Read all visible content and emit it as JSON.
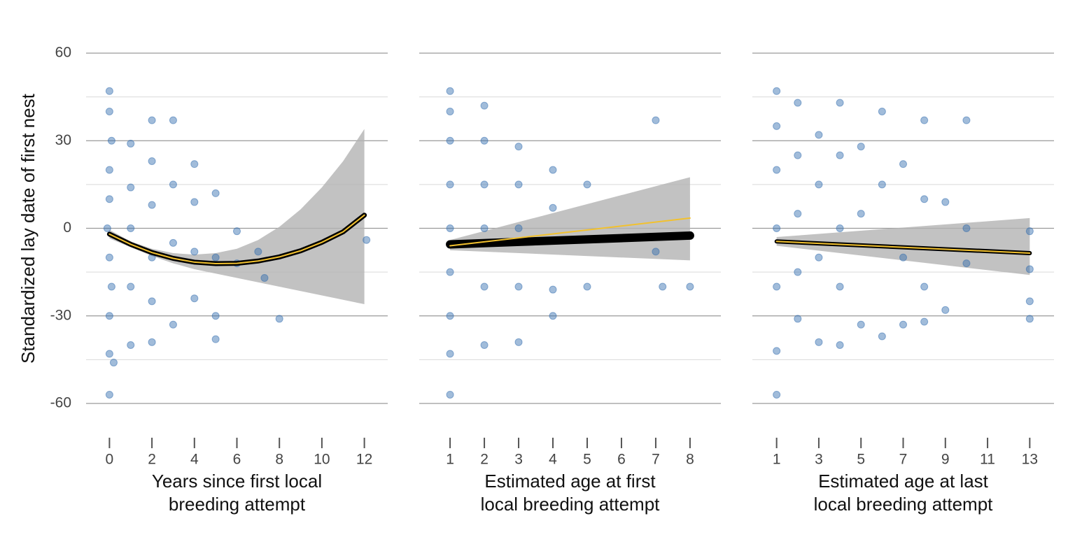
{
  "chart_data": [
    {
      "type": "scatter",
      "ylabel": "Standardized lay date of first nest",
      "xlabel": [
        "Years since first local",
        "breeding attempt"
      ],
      "xlim": [
        -1.1,
        13.1
      ],
      "xticks": [
        0,
        2,
        4,
        6,
        8,
        10,
        12
      ],
      "ylim": [
        -60,
        60
      ],
      "yticks": [
        60,
        30,
        0,
        -30,
        -60
      ],
      "minor_grid": [
        45,
        15,
        -15,
        -45
      ],
      "series": [
        {
          "kind": "band",
          "color": "#b3b3b3",
          "x": [
            0,
            1,
            2,
            3,
            4,
            5,
            6,
            7,
            8,
            9,
            10,
            11,
            12
          ],
          "lower": [
            -3.5,
            -6.5,
            -9.5,
            -12,
            -14,
            -15.5,
            -17,
            -18.5,
            -20,
            -21.5,
            -23,
            -24.5,
            -26
          ],
          "upper": [
            -0.5,
            -4.5,
            -7,
            -8.5,
            -9,
            -8.5,
            -7,
            -4,
            0.5,
            6.5,
            14,
            23,
            34
          ]
        },
        {
          "kind": "scatter",
          "color": "#2e6aad",
          "x": [
            0,
            0,
            0.1,
            0,
            0,
            -0.1,
            0,
            0.1,
            0,
            0,
            0,
            0.2,
            1,
            1,
            1,
            1,
            1,
            2,
            2,
            2,
            2,
            2,
            2,
            3,
            3,
            3,
            3,
            4,
            4,
            4,
            4,
            5,
            5,
            5,
            5,
            6,
            6,
            7,
            7.3,
            8,
            12.1
          ],
          "y": [
            47,
            40,
            30,
            20,
            10,
            0,
            -10,
            -20,
            -30,
            -43,
            -57,
            -46,
            29,
            14,
            0,
            -20,
            -40,
            37,
            23,
            8,
            -10,
            -25,
            -39,
            37,
            15,
            -5,
            -33,
            22,
            9,
            -8,
            -24,
            12,
            -10,
            -30,
            -38,
            -1,
            -12,
            -8,
            -17,
            -31,
            -4
          ]
        },
        {
          "kind": "line",
          "color": "#000000",
          "width": 7,
          "x": [
            0,
            1,
            2,
            3,
            4,
            5,
            6,
            7,
            8,
            9,
            10,
            11,
            12
          ],
          "values": [
            -2,
            -5.5,
            -8.3,
            -10.3,
            -11.6,
            -12.1,
            -12,
            -11.2,
            -9.8,
            -7.7,
            -4.8,
            -1.2,
            4.5
          ]
        },
        {
          "kind": "line",
          "color": "#f2c12e",
          "width": 2,
          "x": [
            0,
            1,
            2,
            3,
            4,
            5,
            6,
            7,
            8,
            9,
            10,
            11,
            12
          ],
          "values": [
            -2,
            -5.5,
            -8.3,
            -10.3,
            -11.6,
            -12.1,
            -12,
            -11.2,
            -9.8,
            -7.7,
            -4.8,
            -1.2,
            4.5
          ]
        }
      ]
    },
    {
      "type": "scatter",
      "xlabel": [
        "Estimated age at first",
        "local breeding attempt"
      ],
      "xlim": [
        0.1,
        8.9
      ],
      "xticks": [
        1,
        2,
        3,
        4,
        5,
        6,
        7,
        8
      ],
      "ylim": [
        -60,
        60
      ],
      "yticks": [
        60,
        30,
        0,
        -30,
        -60
      ],
      "minor_grid": [
        45,
        15,
        -15,
        -45
      ],
      "series": [
        {
          "kind": "band",
          "color": "#b3b3b3",
          "x": [
            1,
            8
          ],
          "lower": [
            -7.5,
            -11
          ],
          "upper": [
            -4,
            17.5
          ]
        },
        {
          "kind": "scatter",
          "color": "#2e6aad",
          "x": [
            1,
            1,
            1,
            1,
            1,
            1,
            1,
            1,
            1,
            2,
            2,
            2,
            2,
            2,
            2,
            3,
            3,
            3,
            3,
            3,
            4,
            4,
            4,
            4,
            5,
            5,
            7,
            7,
            7.2,
            8
          ],
          "y": [
            47,
            40,
            30,
            15,
            0,
            -15,
            -30,
            -43,
            -57,
            42,
            30,
            15,
            0,
            -20,
            -40,
            28,
            15,
            0,
            -20,
            -39,
            20,
            7,
            -21,
            -30,
            15,
            -20,
            37,
            -8,
            -20,
            -20
          ]
        },
        {
          "kind": "line",
          "color": "#000000",
          "width": 12,
          "x": [
            1,
            8
          ],
          "values": [
            -5.5,
            -2.5
          ]
        },
        {
          "kind": "line",
          "color": "#f2c12e",
          "width": 2,
          "x": [
            1,
            8
          ],
          "values": [
            -6,
            3.5
          ]
        }
      ]
    },
    {
      "type": "scatter",
      "xlabel": [
        "Estimated age at last",
        "local breeding attempt"
      ],
      "xlim": [
        -0.15,
        14.15
      ],
      "xticks": [
        1,
        3,
        5,
        7,
        9,
        11,
        13
      ],
      "ylim": [
        -60,
        60
      ],
      "yticks": [
        60,
        30,
        0,
        -30,
        -60
      ],
      "minor_grid": [
        45,
        15,
        -15,
        -45
      ],
      "series": [
        {
          "kind": "band",
          "color": "#b3b3b3",
          "x": [
            1,
            13
          ],
          "lower": [
            -6,
            -16
          ],
          "upper": [
            -3,
            3.5
          ]
        },
        {
          "kind": "scatter",
          "color": "#2e6aad",
          "x": [
            1,
            1,
            1,
            1,
            1,
            1,
            1,
            2,
            2,
            2,
            2,
            2,
            3,
            3,
            3,
            3,
            4,
            4,
            4,
            4,
            4,
            5,
            5,
            5,
            6,
            6,
            6,
            7,
            7,
            7,
            8,
            8,
            8,
            8,
            9,
            9,
            10,
            10,
            10,
            13,
            13,
            13,
            13
          ],
          "y": [
            47,
            35,
            20,
            0,
            -20,
            -42,
            -57,
            43,
            25,
            5,
            -15,
            -31,
            32,
            15,
            -10,
            -39,
            43,
            25,
            0,
            -20,
            -40,
            28,
            5,
            -33,
            40,
            15,
            -37,
            22,
            -10,
            -33,
            37,
            10,
            -20,
            -32,
            9,
            -28,
            37,
            0,
            -12,
            -1,
            -14,
            -25,
            -31
          ]
        },
        {
          "kind": "line",
          "color": "#000000",
          "width": 6,
          "x": [
            1,
            13
          ],
          "values": [
            -4.5,
            -8.5
          ]
        },
        {
          "kind": "line",
          "color": "#f2c12e",
          "width": 2,
          "x": [
            1,
            13
          ],
          "values": [
            -4.5,
            -8.5
          ]
        }
      ]
    }
  ]
}
